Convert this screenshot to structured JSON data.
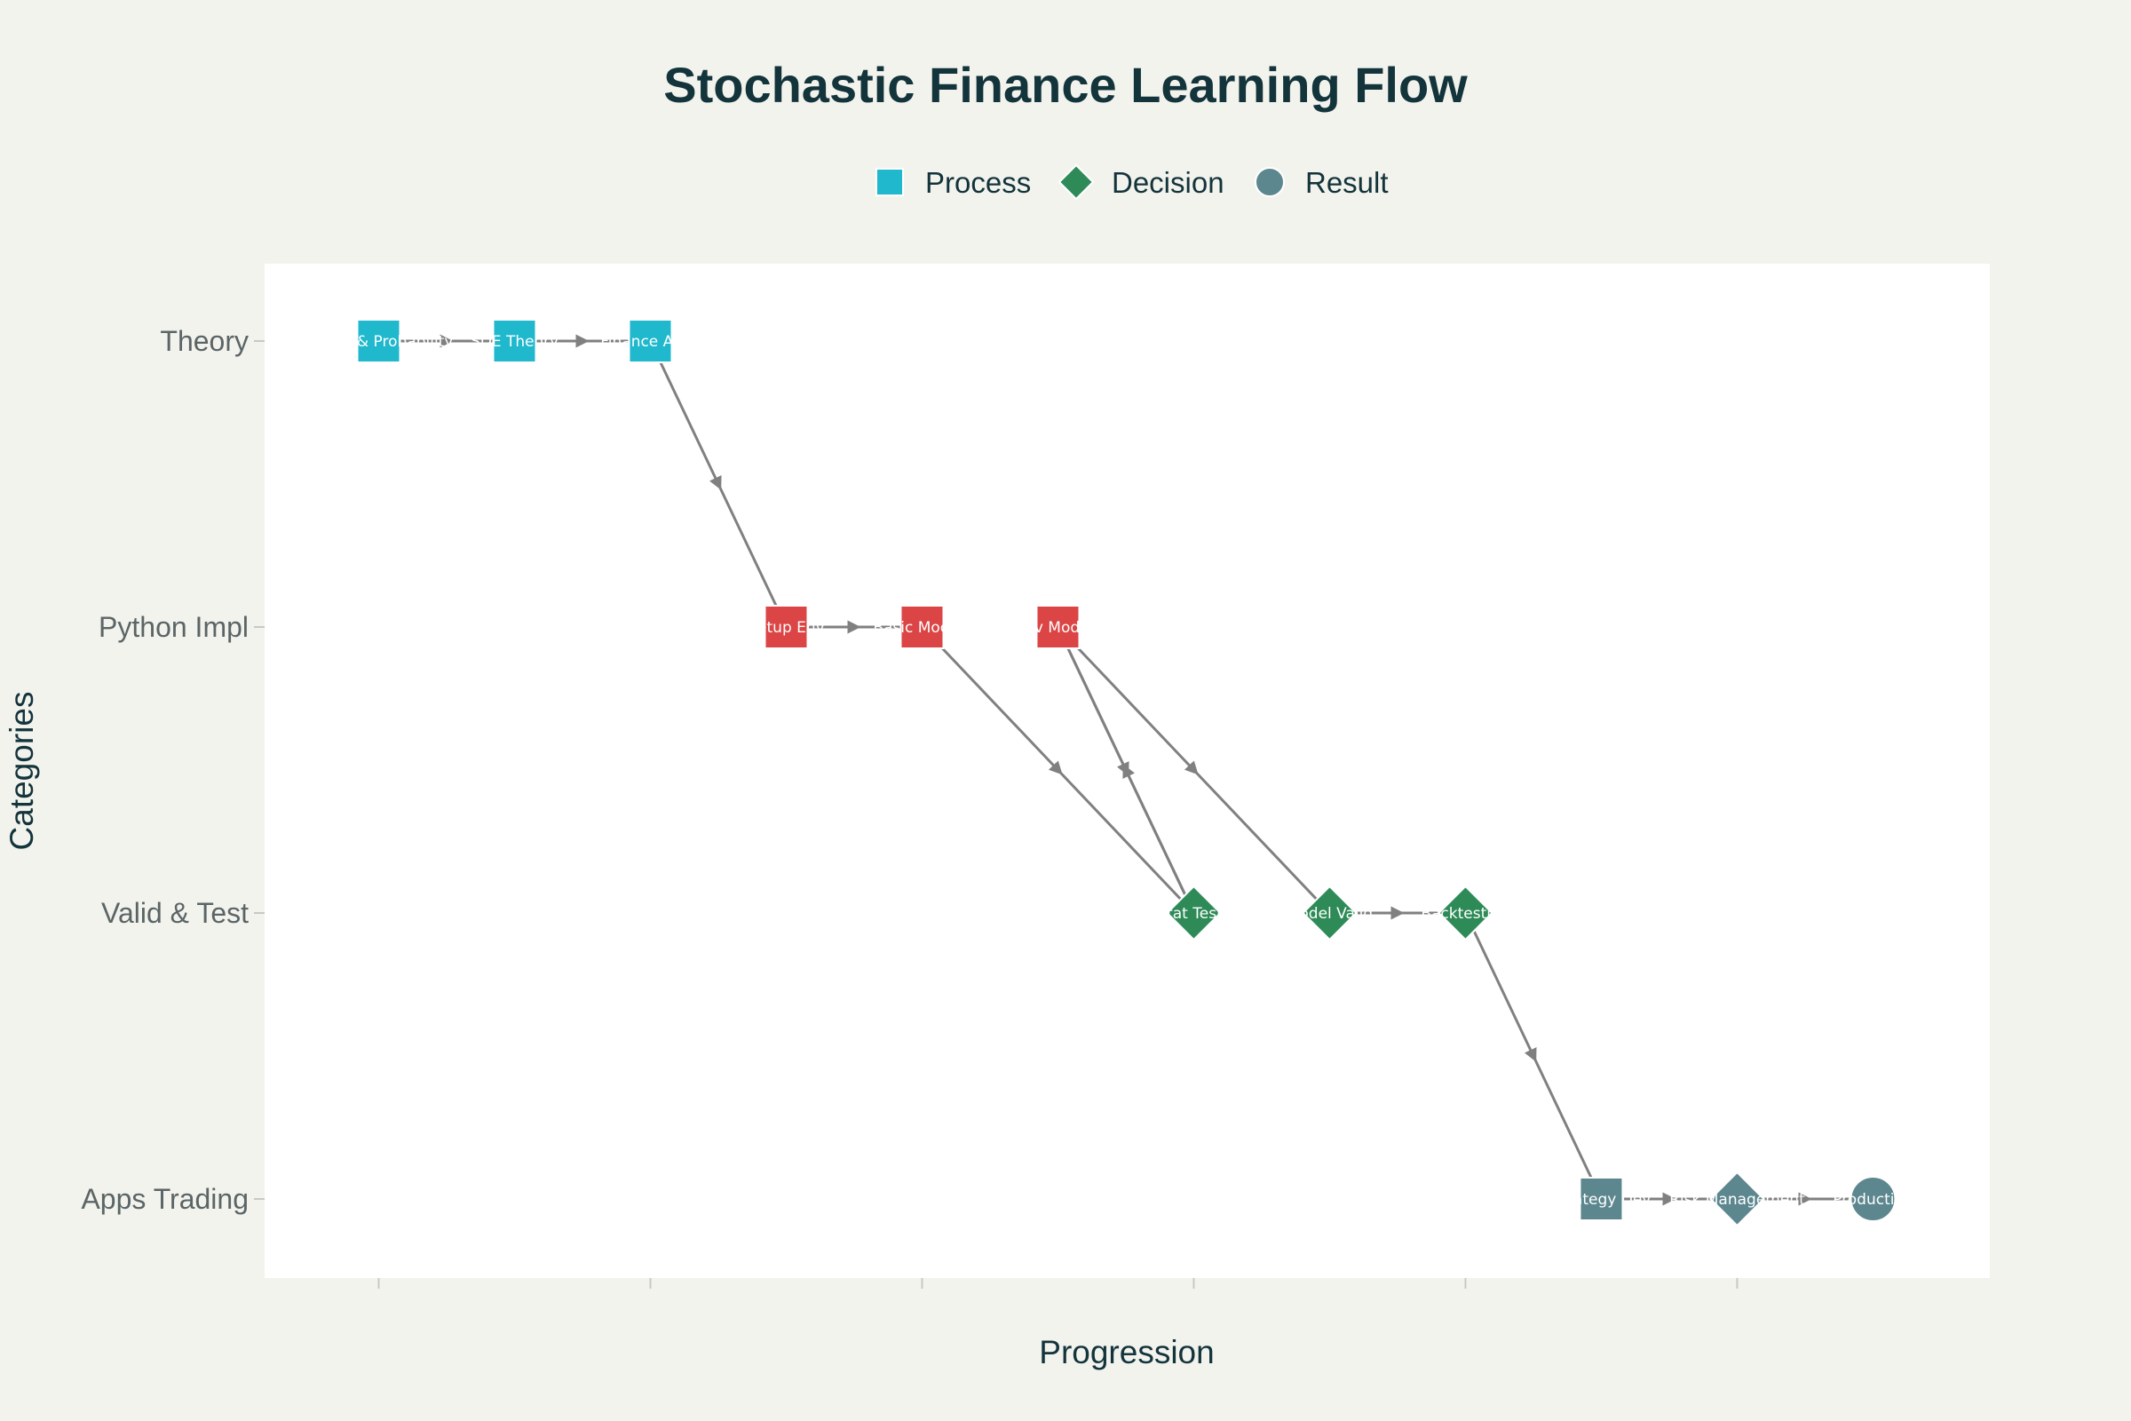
{
  "chart_data": {
    "type": "scatter",
    "title": "Stochastic Finance Learning Flow",
    "xlabel": "Progression",
    "ylabel": "Categories",
    "categories": [
      "Theory",
      "Python Impl",
      "Valid & Test",
      "Apps Trading"
    ],
    "legend": [
      {
        "name": "Process",
        "symbol": "square",
        "color": "#1fb8cd"
      },
      {
        "name": "Decision",
        "symbol": "diamond",
        "color": "#2e8b57"
      },
      {
        "name": "Result",
        "symbol": "circle",
        "color": "#5d878f"
      }
    ],
    "legend_placement": "top-center",
    "xlim": [
      0.16,
      12.86
    ],
    "x_ticks": [
      1,
      3,
      5,
      7,
      9,
      11
    ],
    "nodes": [
      {
        "id": "n1",
        "label": "Basics & Probability",
        "x": 1,
        "category": "Theory",
        "shape": "square",
        "color": "#1fb8cd"
      },
      {
        "id": "n2",
        "label": "SDE Theory",
        "x": 2,
        "category": "Theory",
        "shape": "square",
        "color": "#1fb8cd"
      },
      {
        "id": "n3",
        "label": "Finance Apps",
        "x": 3,
        "category": "Theory",
        "shape": "square",
        "color": "#1fb8cd"
      },
      {
        "id": "n4",
        "label": "Setup Env",
        "x": 4,
        "category": "Python Impl",
        "shape": "square",
        "color": "#db4545"
      },
      {
        "id": "n5",
        "label": "Basic Models",
        "x": 5,
        "category": "Python Impl",
        "shape": "square",
        "color": "#db4545"
      },
      {
        "id": "n6",
        "label": "Adv Models",
        "x": 6,
        "category": "Python Impl",
        "shape": "square",
        "color": "#db4545"
      },
      {
        "id": "n7",
        "label": "Stat Tests",
        "x": 7,
        "category": "Valid & Test",
        "shape": "diamond",
        "color": "#2e8b57"
      },
      {
        "id": "n8",
        "label": "Model Valid",
        "x": 8,
        "category": "Valid & Test",
        "shape": "diamond",
        "color": "#2e8b57"
      },
      {
        "id": "n9",
        "label": "Backtesting",
        "x": 9,
        "category": "Valid & Test",
        "shape": "diamond",
        "color": "#2e8b57"
      },
      {
        "id": "n10",
        "label": "Strategy Dev",
        "x": 10,
        "category": "Apps Trading",
        "shape": "square",
        "color": "#5d878f"
      },
      {
        "id": "n11",
        "label": "Risk Management",
        "x": 11,
        "category": "Apps Trading",
        "shape": "diamond",
        "color": "#5d878f"
      },
      {
        "id": "n12",
        "label": "Production",
        "x": 12,
        "category": "Apps Trading",
        "shape": "circle",
        "color": "#5d878f"
      }
    ],
    "edges": [
      {
        "from": "n1",
        "to": "n2"
      },
      {
        "from": "n2",
        "to": "n3"
      },
      {
        "from": "n3",
        "to": "n4"
      },
      {
        "from": "n4",
        "to": "n5"
      },
      {
        "from": "n5",
        "to": "n7"
      },
      {
        "from": "n6",
        "to": "n7"
      },
      {
        "from": "n6",
        "to": "n8"
      },
      {
        "from": "n7",
        "to": "n6"
      },
      {
        "from": "n8",
        "to": "n9"
      },
      {
        "from": "n9",
        "to": "n10"
      },
      {
        "from": "n10",
        "to": "n11"
      },
      {
        "from": "n11",
        "to": "n12"
      }
    ],
    "grid": false
  }
}
